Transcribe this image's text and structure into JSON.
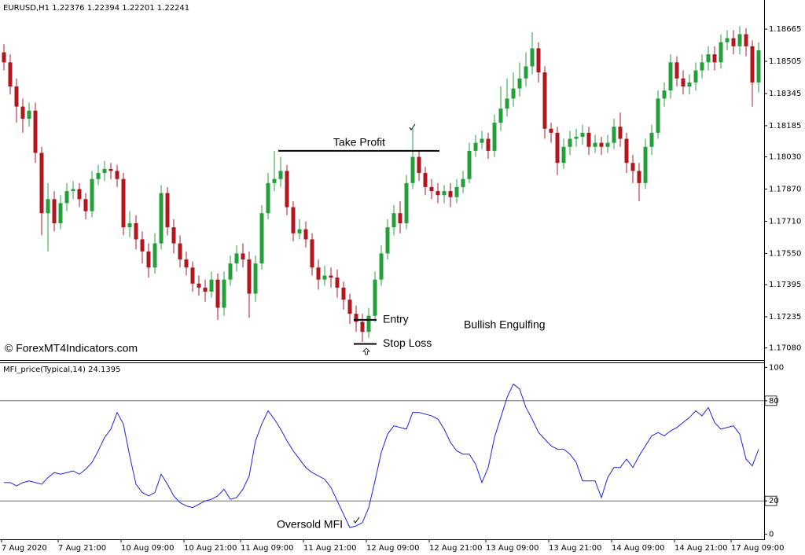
{
  "chart_data": [
    {
      "type": "candlestick",
      "title": "EURUSD,H1  1.22376 1.22394 1.22201 1.22241",
      "up_color": "#23a03a",
      "down_color": "#b3151c",
      "open": [
        1.1855,
        1.185,
        1.1838,
        1.1828,
        1.1822,
        1.1826,
        1.1805,
        1.1775,
        1.1782,
        1.177,
        1.178,
        1.1786,
        1.1787,
        1.1782,
        1.1776,
        1.1792,
        1.1795,
        1.1797,
        1.1796,
        1.1792,
        1.1768,
        1.177,
        1.1762,
        1.1756,
        1.1748,
        1.176,
        1.1785,
        1.1768,
        1.176,
        1.1752,
        1.1748,
        1.174,
        1.1738,
        1.1736,
        1.1742,
        1.1728,
        1.1742,
        1.175,
        1.1755,
        1.1752,
        1.1735,
        1.175,
        1.1775,
        1.179,
        1.1792,
        1.1796,
        1.1778,
        1.1765,
        1.1767,
        1.1762,
        1.1748,
        1.1742,
        1.1744,
        1.1743,
        1.1738,
        1.1732,
        1.1725,
        1.1721,
        1.1716,
        1.1724,
        1.1742,
        1.1755,
        1.1768,
        1.1775,
        1.177,
        1.179,
        1.1803,
        1.1795,
        1.1788,
        1.1786,
        1.1784,
        1.1786,
        1.1783,
        1.1788,
        1.1792,
        1.1806,
        1.181,
        1.1812,
        1.1806,
        1.182,
        1.1827,
        1.1832,
        1.1837,
        1.1842,
        1.1848,
        1.1857,
        1.1845,
        1.1817,
        1.1815,
        1.18,
        1.1808,
        1.1812,
        1.1813,
        1.1815,
        1.1808,
        1.181,
        1.1808,
        1.181,
        1.1818,
        1.1812,
        1.18,
        1.1796,
        1.179,
        1.1808,
        1.1815,
        1.1832,
        1.1836,
        1.185,
        1.1842,
        1.1838,
        1.184,
        1.1846,
        1.185,
        1.1854,
        1.185,
        1.186,
        1.1862,
        1.1858,
        1.1864,
        1.1858,
        1.184
      ],
      "high": [
        1.1859,
        1.1854,
        1.1842,
        1.1832,
        1.183,
        1.183,
        1.1808,
        1.179,
        1.1786,
        1.1784,
        1.179,
        1.1791,
        1.179,
        1.1785,
        1.1796,
        1.1799,
        1.1801,
        1.18,
        1.1799,
        1.1795,
        1.1776,
        1.1774,
        1.1766,
        1.176,
        1.1765,
        1.1789,
        1.1788,
        1.1772,
        1.1764,
        1.1756,
        1.1751,
        1.1744,
        1.1742,
        1.1746,
        1.1745,
        1.1746,
        1.1754,
        1.1759,
        1.176,
        1.1756,
        1.1754,
        1.1779,
        1.1795,
        1.1806,
        1.1803,
        1.1799,
        1.1781,
        1.1772,
        1.1771,
        1.1765,
        1.1752,
        1.1749,
        1.1748,
        1.1747,
        1.1741,
        1.1735,
        1.1729,
        1.1725,
        1.1728,
        1.1746,
        1.1759,
        1.1772,
        1.1779,
        1.1781,
        1.1794,
        1.1818,
        1.1806,
        1.1798,
        1.1792,
        1.179,
        1.1789,
        1.179,
        1.1792,
        1.1796,
        1.181,
        1.1814,
        1.1816,
        1.1815,
        1.1824,
        1.1838,
        1.1842,
        1.1845,
        1.185,
        1.1855,
        1.1865,
        1.186,
        1.1848,
        1.182,
        1.1818,
        1.1812,
        1.1816,
        1.1817,
        1.1819,
        1.1818,
        1.1814,
        1.1813,
        1.1814,
        1.1822,
        1.1825,
        1.1815,
        1.1804,
        1.18,
        1.1812,
        1.1819,
        1.1836,
        1.184,
        1.1854,
        1.1853,
        1.1846,
        1.1844,
        1.185,
        1.1854,
        1.1858,
        1.1858,
        1.1864,
        1.1866,
        1.1866,
        1.1868,
        1.1867,
        1.1861,
        1.186
      ],
      "low": [
        1.1846,
        1.1834,
        1.182,
        1.1815,
        1.1818,
        1.18,
        1.1764,
        1.1756,
        1.1766,
        1.1767,
        1.1776,
        1.1782,
        1.1778,
        1.1772,
        1.1773,
        1.1789,
        1.1791,
        1.1792,
        1.1788,
        1.1764,
        1.1763,
        1.1757,
        1.175,
        1.1743,
        1.1745,
        1.1757,
        1.1764,
        1.1755,
        1.1748,
        1.1744,
        1.1736,
        1.1734,
        1.1731,
        1.1733,
        1.1722,
        1.1724,
        1.1739,
        1.1746,
        1.1748,
        1.1723,
        1.1731,
        1.1747,
        1.1772,
        1.1786,
        1.1788,
        1.1774,
        1.1761,
        1.1762,
        1.1758,
        1.1744,
        1.1737,
        1.1739,
        1.1738,
        1.1733,
        1.1727,
        1.172,
        1.1716,
        1.1711,
        1.1713,
        1.1721,
        1.1739,
        1.1752,
        1.1764,
        1.1765,
        1.1767,
        1.1787,
        1.1791,
        1.1784,
        1.1782,
        1.178,
        1.178,
        1.1778,
        1.178,
        1.1785,
        1.179,
        1.1803,
        1.1807,
        1.1802,
        1.1803,
        1.1816,
        1.1823,
        1.1828,
        1.1833,
        1.1838,
        1.1844,
        1.184,
        1.1812,
        1.181,
        1.1794,
        1.1797,
        1.1804,
        1.1808,
        1.1809,
        1.1804,
        1.1805,
        1.1804,
        1.1805,
        1.1807,
        1.1808,
        1.1795,
        1.179,
        1.1781,
        1.1787,
        1.1804,
        1.1812,
        1.1828,
        1.1832,
        1.1838,
        1.1834,
        1.1834,
        1.1836,
        1.1842,
        1.1846,
        1.1846,
        1.1847,
        1.1856,
        1.1854,
        1.1854,
        1.1853,
        1.1828,
        1.1835
      ],
      "close": [
        1.185,
        1.1838,
        1.1828,
        1.1822,
        1.1826,
        1.1805,
        1.1775,
        1.1782,
        1.177,
        1.178,
        1.1786,
        1.1787,
        1.1782,
        1.1776,
        1.1792,
        1.1795,
        1.1797,
        1.1796,
        1.1792,
        1.1768,
        1.177,
        1.1762,
        1.1756,
        1.1748,
        1.176,
        1.1785,
        1.1768,
        1.176,
        1.1752,
        1.1748,
        1.174,
        1.1738,
        1.1736,
        1.1742,
        1.1728,
        1.1742,
        1.175,
        1.1755,
        1.1752,
        1.1735,
        1.175,
        1.1775,
        1.179,
        1.1792,
        1.1796,
        1.1778,
        1.1765,
        1.1767,
        1.1762,
        1.1748,
        1.1742,
        1.1744,
        1.1743,
        1.1738,
        1.1732,
        1.1725,
        1.1721,
        1.1716,
        1.1724,
        1.1742,
        1.1755,
        1.1768,
        1.1775,
        1.177,
        1.179,
        1.1803,
        1.1795,
        1.1788,
        1.1786,
        1.1784,
        1.1786,
        1.1783,
        1.1788,
        1.1792,
        1.1806,
        1.181,
        1.1812,
        1.1806,
        1.182,
        1.1827,
        1.1832,
        1.1837,
        1.1842,
        1.1848,
        1.1857,
        1.1845,
        1.1817,
        1.1815,
        1.18,
        1.1808,
        1.1812,
        1.1813,
        1.1815,
        1.1808,
        1.181,
        1.1808,
        1.181,
        1.1818,
        1.1812,
        1.18,
        1.1796,
        1.179,
        1.1808,
        1.1815,
        1.1832,
        1.1836,
        1.185,
        1.1842,
        1.1838,
        1.184,
        1.1846,
        1.185,
        1.1854,
        1.185,
        1.186,
        1.1862,
        1.1858,
        1.1864,
        1.1858,
        1.184,
        1.1856
      ],
      "ylim": [
        1.1702,
        1.1881
      ],
      "yticks": [
        1.18665,
        1.18505,
        1.18345,
        1.18185,
        {
          "value": 1.1803,
          "label": "1.18030"
        },
        {
          "value": 1.1787,
          "label": "1.17870"
        },
        {
          "value": 1.1771,
          "label": "1.17710"
        },
        {
          "value": 1.1755,
          "label": "1.17550"
        },
        1.17395,
        1.17235,
        {
          "value": 1.1708,
          "label": "1.17080"
        }
      ],
      "annotations": [
        {
          "text": "Take Profit",
          "price": 1.1806
        },
        {
          "text": "Entry",
          "price": 1.1722
        },
        {
          "text": "Stop Loss",
          "price": 1.171
        }
      ],
      "pattern_label": "Bullish Engulfing",
      "watermark": "© ForexMT4Indicators.com"
    },
    {
      "type": "line",
      "title": "MFI_price(Typical,14) 24.1395",
      "color": "#2020e0",
      "values": [
        31,
        31,
        29,
        31,
        32,
        31,
        30,
        34,
        37,
        36,
        37,
        38,
        36,
        39,
        43,
        50,
        58,
        63,
        73,
        66,
        47,
        30,
        25,
        23,
        25,
        36,
        30,
        23,
        19,
        17,
        16,
        18,
        20,
        21,
        23,
        27,
        21,
        22,
        27,
        35,
        56,
        66,
        74,
        69,
        63,
        56,
        50,
        45,
        40,
        37,
        35,
        33,
        28,
        20,
        12,
        4,
        5,
        7,
        16,
        32,
        49,
        60,
        65,
        64,
        63,
        73,
        73,
        72,
        71,
        69,
        63,
        55,
        50,
        48,
        48,
        42,
        31,
        40,
        58,
        70,
        82,
        90,
        87,
        76,
        69,
        61,
        57,
        53,
        51,
        51,
        48,
        43,
        32,
        32,
        32,
        22,
        34,
        40,
        40,
        45,
        40,
        47,
        53,
        59,
        61,
        59,
        62,
        64,
        67,
        70,
        74,
        71,
        76,
        67,
        63,
        64,
        65,
        60,
        45,
        41,
        51
      ],
      "ylim": [
        -3,
        103
      ],
      "yticks": [
        100,
        80,
        20,
        0
      ],
      "levels": [
        80,
        20
      ],
      "annotation": "Oversold MFI",
      "xticks": [
        {
          "value": 0,
          "label": "7 Aug 2020"
        },
        {
          "value": 9,
          "label": "7 Aug 21:00"
        },
        {
          "value": 19,
          "label": "10 Aug 09:00"
        },
        {
          "value": 29,
          "label": "10 Aug 21:00"
        },
        {
          "value": 38,
          "label": "11 Aug 09:00"
        },
        {
          "value": 48,
          "label": "11 Aug 21:00"
        },
        {
          "value": 58,
          "label": "12 Aug 09:00"
        },
        {
          "value": 68,
          "label": "12 Aug 21:00"
        },
        {
          "value": 77,
          "label": "13 Aug 09:00"
        },
        {
          "value": 87,
          "label": "13 Aug 21:00"
        },
        {
          "value": 97,
          "label": "14 Aug 09:00"
        },
        {
          "value": 107,
          "label": "14 Aug 21:00"
        },
        {
          "value": 116,
          "label": "17 Aug 09:00"
        }
      ]
    }
  ]
}
